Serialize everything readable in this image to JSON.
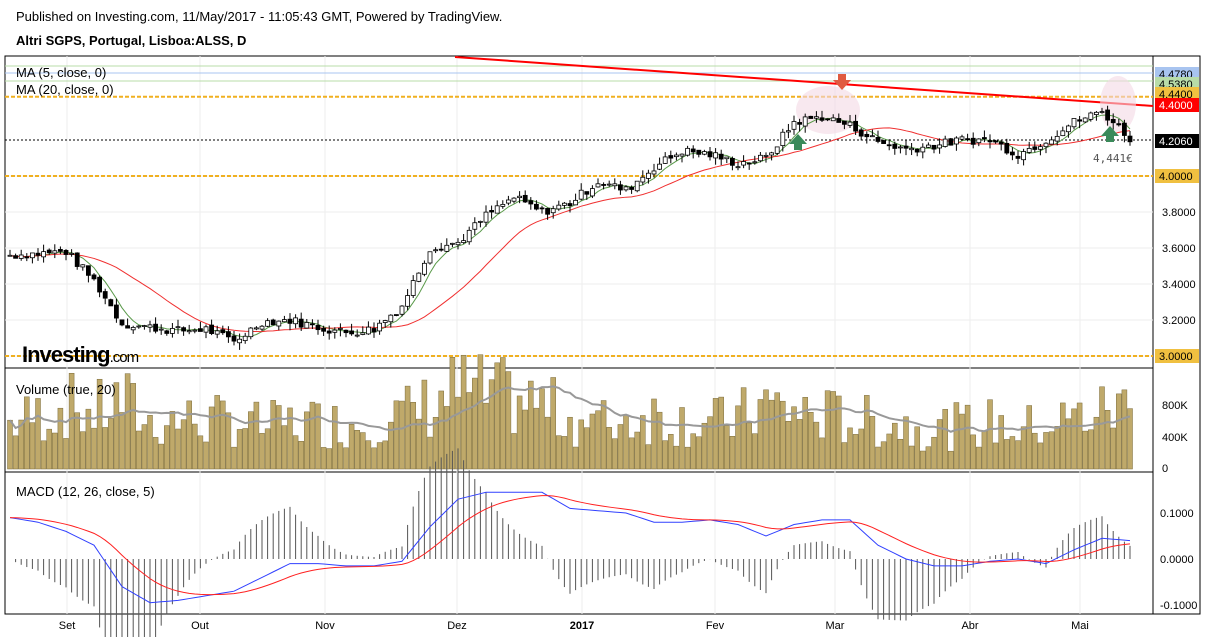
{
  "header": {
    "published": "Published on Investing.com, 11/May/2017 - 11:05:43 GMT, Powered by TradingView.",
    "symbol": "Altri SGPS, Portugal, Lisboa:ALSS, D"
  },
  "logo": {
    "text": "Investing",
    "suffix": ".com"
  },
  "colors": {
    "up": "#ffffff",
    "down": "#000000",
    "ma5": "#5a9a4a",
    "ma20": "#f03030",
    "trend": "#ff0000",
    "level": "#f0b020",
    "volume": "#bfa96a",
    "macd": "#3040ff",
    "signal": "#ff2020"
  },
  "chart_data": [
    {
      "type": "candlestick",
      "title": "Altri SGPS, Portugal, Lisboa:ALSS, D",
      "legend": [
        "MA (5, close, 0)",
        "MA (20, close, 0)"
      ],
      "ylim": [
        2.97,
        4.6
      ],
      "yticks": [
        "3.0000",
        "3.2000",
        "3.4000",
        "3.6000",
        "3.8000",
        "4.0000"
      ],
      "price_labels": [
        {
          "text": "4.4780",
          "value": 4.478,
          "color": "#a8c4f0"
        },
        {
          "text": "4.5380",
          "value": 4.538,
          "color": "#b8dca8"
        },
        {
          "text": "4.4400",
          "value": 4.44,
          "color": "#f0c040"
        },
        {
          "text": "4.4000",
          "value": 4.4,
          "color": "#ff0000"
        },
        {
          "text": "4.2060",
          "value": 4.206,
          "color": "#000000"
        },
        {
          "text": "4.0000",
          "value": 4.0,
          "color": "#f0c040"
        },
        {
          "text": "3.0000",
          "value": 3.0,
          "color": "#f0c040"
        }
      ],
      "levels": [
        4.44,
        4.0,
        3.0
      ],
      "annotation": "4,441€",
      "weekly_close": [
        3.56,
        3.57,
        3.58,
        3.42,
        3.18,
        3.16,
        3.14,
        3.15,
        3.08,
        3.19,
        3.2,
        3.16,
        3.13,
        3.15,
        3.28,
        3.6,
        3.63,
        3.78,
        3.88,
        3.8,
        3.85,
        3.97,
        3.92,
        4.05,
        4.14,
        4.12,
        4.07,
        4.1,
        4.3,
        4.33,
        4.28,
        4.19,
        4.15,
        4.17,
        4.2,
        4.2,
        4.12,
        4.2,
        4.3,
        4.36,
        4.21
      ]
    },
    {
      "type": "bar",
      "title": "Volume (true, 20)",
      "yticks": [
        "0",
        "400K",
        "800K"
      ],
      "ylim": [
        0,
        1100000
      ],
      "weekly_volume": [
        300,
        350,
        420,
        360,
        450,
        300,
        330,
        310,
        320,
        280,
        300,
        310,
        290,
        330,
        350,
        420,
        520,
        480,
        460,
        420,
        330,
        300,
        330,
        360,
        320,
        300,
        330,
        420,
        380,
        350,
        330,
        300,
        290,
        270,
        280,
        300,
        260,
        300,
        330,
        380,
        420
      ]
    },
    {
      "type": "line",
      "title": "MACD (12, 26, close, 5)",
      "yticks": [
        "0.1000",
        "0.0000",
        "-0.1000"
      ],
      "ylim": [
        -0.1,
        0.1
      ],
      "macd": [
        0.09,
        0.08,
        0.06,
        0.03,
        -0.06,
        -0.095,
        -0.09,
        -0.08,
        -0.07,
        -0.04,
        -0.01,
        -0.01,
        -0.015,
        -0.015,
        -0.005,
        0.07,
        0.13,
        0.145,
        0.145,
        0.145,
        0.11,
        0.105,
        0.1,
        0.08,
        0.08,
        0.085,
        0.075,
        0.05,
        0.075,
        0.085,
        0.085,
        0.03,
        0.0,
        -0.015,
        -0.015,
        -0.005,
        0.0,
        -0.01,
        0.02,
        0.045,
        0.04
      ]
    },
    {
      "type": "axis",
      "xticks": [
        "Set",
        "Out",
        "Nov",
        "Dez",
        "2017",
        "Fev",
        "Mar",
        "Abr",
        "Mai"
      ]
    }
  ]
}
